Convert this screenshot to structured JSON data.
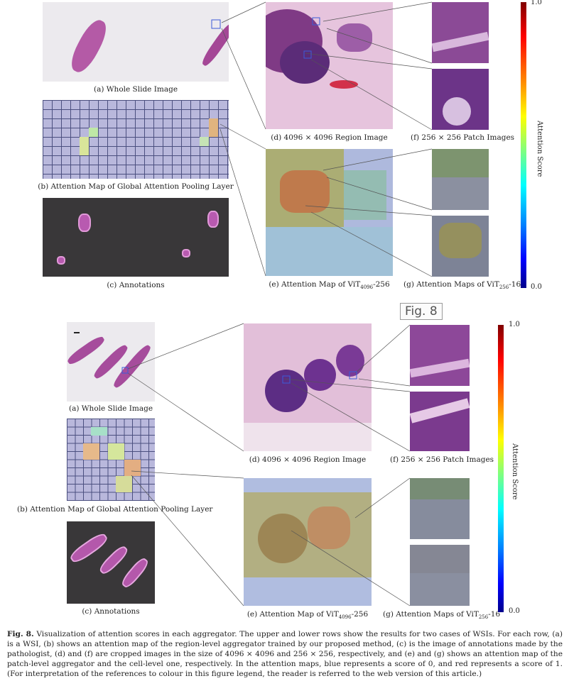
{
  "figure_badge": "Fig. 8",
  "top": {
    "labels": {
      "a": "(a) Whole Slide Image",
      "b": "(b) Attention Map of Global Attention Pooling Layer",
      "c": "(c) Annotations",
      "d": "(d) 4096 × 4096 Region Image",
      "e_prefix": "(e) Attention Map of ViT",
      "e_sub": "4096",
      "e_suffix": "-256",
      "f": "(f) 256 × 256 Patch Images",
      "g_prefix": "(g) Attention Maps of ViT",
      "g_sub": "256",
      "g_suffix": "-16"
    },
    "colorbar": {
      "max": "1.0",
      "min": "0.0",
      "title": "Attention Score"
    }
  },
  "bottom": {
    "labels": {
      "a": "(a) Whole Slide Image",
      "b": "(b) Attention Map of Global Attention Pooling Layer",
      "c": "(c) Annotations",
      "d": "(d) 4096 × 4096 Region Image",
      "e_prefix": "(e) Attention Map of ViT",
      "e_sub": "4096",
      "e_suffix": "-256",
      "f": "(f) 256 × 256 Patch Images",
      "g_prefix": "(g) Attention Maps of ViT",
      "g_sub": "256",
      "g_suffix": "-16"
    },
    "colorbar": {
      "max": "1.0",
      "min": "0.0",
      "title": "Attention Score"
    }
  },
  "caption": {
    "label": "Fig. 8.",
    "text": " Visualization of attention scores in each aggregator. The upper and lower rows show the results for two cases of WSIs. For each row, (a) is a WSI, (b) shows an attention map of the region-level aggregator trained by our proposed method, (c) is the image of annotations made by the pathologist, (d) and (f) are cropped images in the size of 4096 × 4096 and 256 × 256, respectively, and (e) and (g) shows an attention map of the patch-level aggregator and the cell-level one, respectively. In the attention maps, blue represents a score of 0, and red represents a score of 1. (For interpretation of the references to colour in this figure legend, the reader is referred to the web version of this article.)"
  }
}
